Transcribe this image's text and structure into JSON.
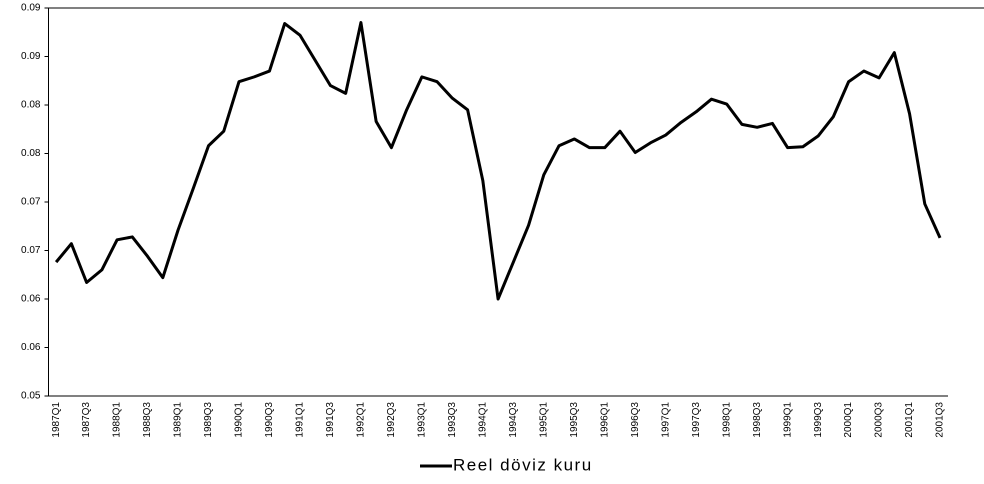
{
  "chart_data": {
    "type": "line",
    "categories": [
      "1987Q1",
      null,
      "1987Q3",
      null,
      "1988Q1",
      null,
      "1988Q3",
      null,
      "1989Q1",
      null,
      "1989Q3",
      null,
      "1990Q1",
      null,
      "1990Q3",
      null,
      "1991Q1",
      null,
      "1991Q3",
      null,
      "1992Q1",
      null,
      "1992Q3",
      null,
      "1993Q1",
      null,
      "1993Q3",
      null,
      "1994Q1",
      null,
      "1994Q3",
      null,
      "1995Q1",
      null,
      "1995Q3",
      null,
      "1996Q1",
      null,
      "1996Q3",
      null,
      "1997Q1",
      null,
      "1997Q3",
      null,
      "1998Q1",
      null,
      "1998Q3",
      null,
      "1999Q1",
      null,
      "1999Q3",
      null,
      "2000Q1",
      null,
      "2000Q3",
      null,
      "2001Q1",
      null,
      "2001Q3"
    ],
    "series": [
      {
        "name": "Reel döviz kuru",
        "color": "#000000",
        "values": [
          0.0638,
          0.0657,
          0.0617,
          0.063,
          0.0661,
          0.0664,
          0.0644,
          0.0622,
          0.0671,
          0.0714,
          0.0758,
          0.0773,
          0.0824,
          0.0829,
          0.0835,
          0.0884,
          0.0872,
          0.0846,
          0.082,
          0.0812,
          0.0885,
          0.0783,
          0.0756,
          0.0795,
          0.0829,
          0.0824,
          0.0807,
          0.0795,
          0.0722,
          0.06,
          0.0638,
          0.0676,
          0.0728,
          0.0758,
          0.0765,
          0.0756,
          0.0756,
          0.0773,
          0.0751,
          0.0761,
          0.0769,
          0.0782,
          0.0793,
          0.0806,
          0.0801,
          0.078,
          0.0777,
          0.0781,
          0.0756,
          0.0757,
          0.0768,
          0.0788,
          0.0824,
          0.0835,
          0.0828,
          0.0854,
          0.0791,
          0.0698,
          0.0663
        ]
      }
    ],
    "ylim": [
      0.05,
      0.09
    ],
    "yticks": [
      {
        "value": 0.05,
        "label": "0.05"
      },
      {
        "value": 0.055,
        "label": "0.06"
      },
      {
        "value": 0.06,
        "label": "0.06"
      },
      {
        "value": 0.065,
        "label": "0.07"
      },
      {
        "value": 0.07,
        "label": "0.07"
      },
      {
        "value": 0.075,
        "label": "0.08"
      },
      {
        "value": 0.08,
        "label": "0.08"
      },
      {
        "value": 0.085,
        "label": "0.09"
      },
      {
        "value": 0.09,
        "label": "0.09"
      }
    ],
    "grid": false,
    "legend": "bottom"
  }
}
